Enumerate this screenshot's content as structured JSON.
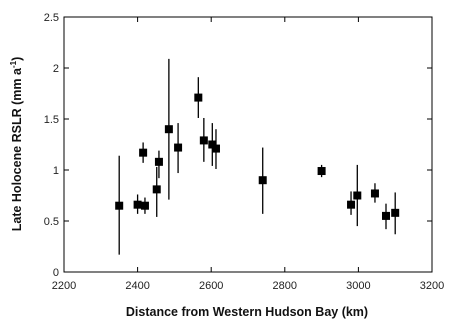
{
  "chart_data": {
    "type": "scatter",
    "title": "",
    "xlabel": "Distance from Western Hudson Bay (km)",
    "ylabel_main": "Late Holocene RSLR (mm a",
    "ylabel_sup": "-1",
    "ylabel_close": ")",
    "xlim": [
      2200,
      3200
    ],
    "ylim": [
      0,
      2.5
    ],
    "x_ticks": [
      {
        "value": 2200,
        "label": "2200"
      },
      {
        "value": 2400,
        "label": "2400"
      },
      {
        "value": 2600,
        "label": "2600"
      },
      {
        "value": 2800,
        "label": "2800"
      },
      {
        "value": 3000,
        "label": "3000"
      },
      {
        "value": 3200,
        "label": "3200"
      }
    ],
    "y_ticks": [
      {
        "value": 0,
        "label": "0"
      },
      {
        "value": 0.5,
        "label": "0.5"
      },
      {
        "value": 1,
        "label": "1"
      },
      {
        "value": 1.5,
        "label": "1.5"
      },
      {
        "value": 2,
        "label": "2"
      },
      {
        "value": 2.5,
        "label": "2.5"
      }
    ],
    "grid": false,
    "marker": "square",
    "marker_color": "#000000",
    "points": [
      {
        "x": 2350,
        "y": 0.65,
        "low": 0.17,
        "high": 1.14
      },
      {
        "x": 2400,
        "y": 0.66,
        "low": 0.57,
        "high": 0.76
      },
      {
        "x": 2415,
        "y": 1.17,
        "low": 1.07,
        "high": 1.27
      },
      {
        "x": 2420,
        "y": 0.65,
        "low": 0.57,
        "high": 0.73
      },
      {
        "x": 2452,
        "y": 0.81,
        "low": 0.54,
        "high": 1.03
      },
      {
        "x": 2458,
        "y": 1.08,
        "low": 0.92,
        "high": 1.19
      },
      {
        "x": 2485,
        "y": 1.4,
        "low": 0.71,
        "high": 2.09
      },
      {
        "x": 2510,
        "y": 1.22,
        "low": 0.97,
        "high": 1.46
      },
      {
        "x": 2565,
        "y": 1.71,
        "low": 1.51,
        "high": 1.91
      },
      {
        "x": 2580,
        "y": 1.29,
        "low": 1.08,
        "high": 1.51
      },
      {
        "x": 2603,
        "y": 1.25,
        "low": 1.04,
        "high": 1.46
      },
      {
        "x": 2613,
        "y": 1.21,
        "low": 1.01,
        "high": 1.4
      },
      {
        "x": 2740,
        "y": 0.9,
        "low": 0.57,
        "high": 1.22
      },
      {
        "x": 2900,
        "y": 0.99,
        "low": 0.93,
        "high": 1.05
      },
      {
        "x": 2980,
        "y": 0.66,
        "low": 0.56,
        "high": 0.79
      },
      {
        "x": 2997,
        "y": 0.75,
        "low": 0.45,
        "high": 1.05
      },
      {
        "x": 3045,
        "y": 0.77,
        "low": 0.68,
        "high": 0.87
      },
      {
        "x": 3075,
        "y": 0.55,
        "low": 0.42,
        "high": 0.67
      },
      {
        "x": 3100,
        "y": 0.58,
        "low": 0.37,
        "high": 0.78
      }
    ]
  }
}
